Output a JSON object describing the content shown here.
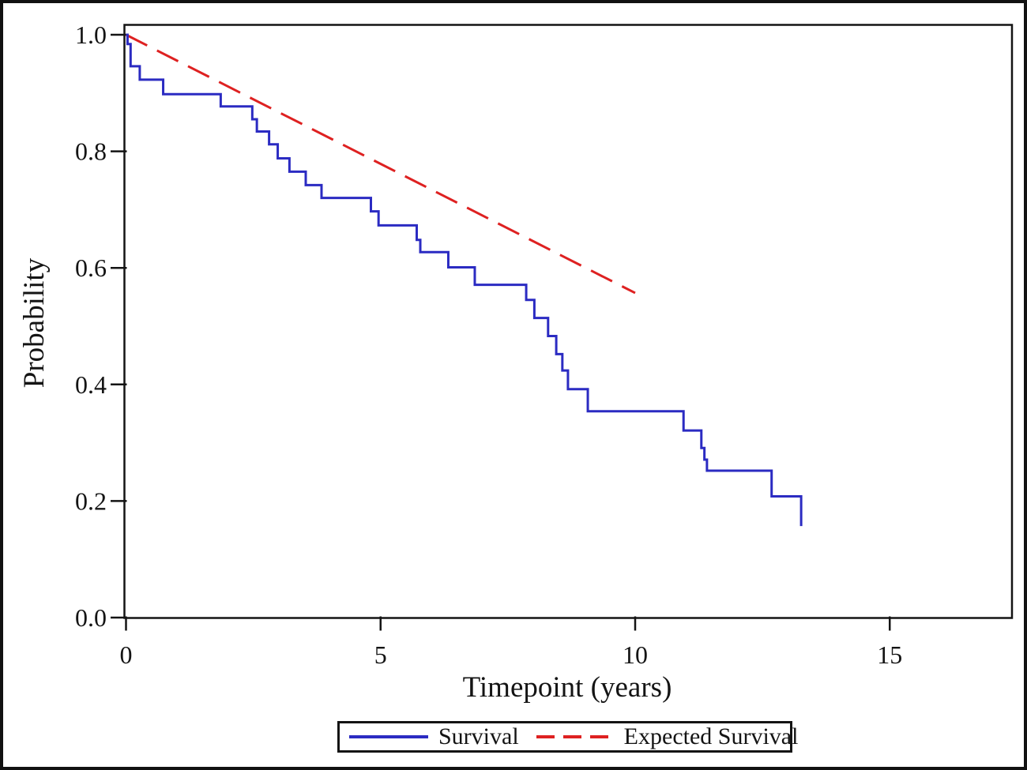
{
  "figure": {
    "background": "#ffffff",
    "frame_color": "#111111",
    "axis_color": "#141414"
  },
  "chart_data": {
    "type": "line",
    "subtype": "kaplan-meier-survival",
    "title": "",
    "xlabel": "Timepoint (years)",
    "ylabel": "Probability",
    "xlim": [
      0,
      17.4
    ],
    "ylim": [
      0.0,
      1.0
    ],
    "x_ticks": [
      "0",
      "5",
      "10",
      "15"
    ],
    "x_tick_values": [
      0,
      5,
      10,
      15
    ],
    "y_ticks": [
      "0.0",
      "0.2",
      "0.4",
      "0.6",
      "0.8",
      "1.0"
    ],
    "y_tick_values": [
      0.0,
      0.2,
      0.4,
      0.6,
      0.8,
      1.0
    ],
    "grid": false,
    "legend_position": "bottom-center-boxed",
    "series": [
      {
        "name": "Survival",
        "type": "step-after",
        "line_style": "solid",
        "color": "#2b2bc2",
        "points": [
          [
            0,
            1.0
          ],
          [
            0.03,
            0.984
          ],
          [
            0.09,
            0.946
          ],
          [
            0.27,
            0.923
          ],
          [
            0.73,
            0.898
          ],
          [
            1.86,
            0.877
          ],
          [
            2.48,
            0.855
          ],
          [
            2.57,
            0.834
          ],
          [
            2.81,
            0.812
          ],
          [
            2.98,
            0.788
          ],
          [
            3.21,
            0.765
          ],
          [
            3.53,
            0.742
          ],
          [
            3.84,
            0.72
          ],
          [
            4.81,
            0.697
          ],
          [
            4.96,
            0.673
          ],
          [
            5.71,
            0.648
          ],
          [
            5.78,
            0.627
          ],
          [
            6.33,
            0.601
          ],
          [
            6.85,
            0.571
          ],
          [
            7.86,
            0.545
          ],
          [
            8.02,
            0.514
          ],
          [
            8.29,
            0.483
          ],
          [
            8.45,
            0.452
          ],
          [
            8.57,
            0.424
          ],
          [
            8.68,
            0.392
          ],
          [
            9.07,
            0.354
          ],
          [
            10.95,
            0.321
          ],
          [
            11.3,
            0.291
          ],
          [
            11.36,
            0.271
          ],
          [
            11.41,
            0.252
          ],
          [
            12.68,
            0.208
          ],
          [
            13.26,
            0.157
          ]
        ]
      },
      {
        "name": "Expected Survival",
        "type": "line",
        "line_style": "dashed",
        "color": "#de2121",
        "points": [
          [
            0,
            1.0
          ],
          [
            10,
            0.557
          ]
        ]
      }
    ]
  },
  "legend": {
    "items": [
      {
        "label": "Survival",
        "swatch": "solid-line",
        "color": "#2b2bc2"
      },
      {
        "label": "Expected Survival",
        "swatch": "dashed-line",
        "color": "#de2121"
      }
    ]
  }
}
